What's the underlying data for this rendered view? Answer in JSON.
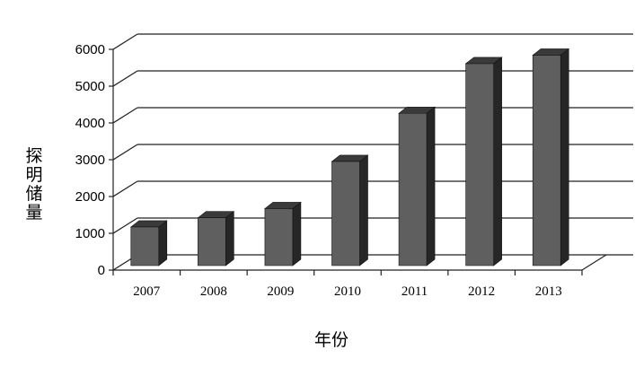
{
  "chart_data": {
    "type": "bar",
    "style": "3d-column",
    "categories": [
      "2007",
      "2008",
      "2009",
      "2010",
      "2011",
      "2012",
      "2013"
    ],
    "values": [
      1050,
      1300,
      1550,
      2830,
      4140,
      5490,
      5720
    ],
    "xlabel": "年份",
    "ylabel": "探明储量",
    "ylim": [
      0,
      6000
    ],
    "yticks": [
      "0",
      "1000",
      "2000",
      "3000",
      "4000",
      "5000",
      "6000"
    ],
    "grid": true,
    "legend": "none",
    "colors": {
      "front": "#5f5f5f",
      "side": "#262626",
      "top": "#3a3a3a",
      "grid": "#222222"
    }
  }
}
